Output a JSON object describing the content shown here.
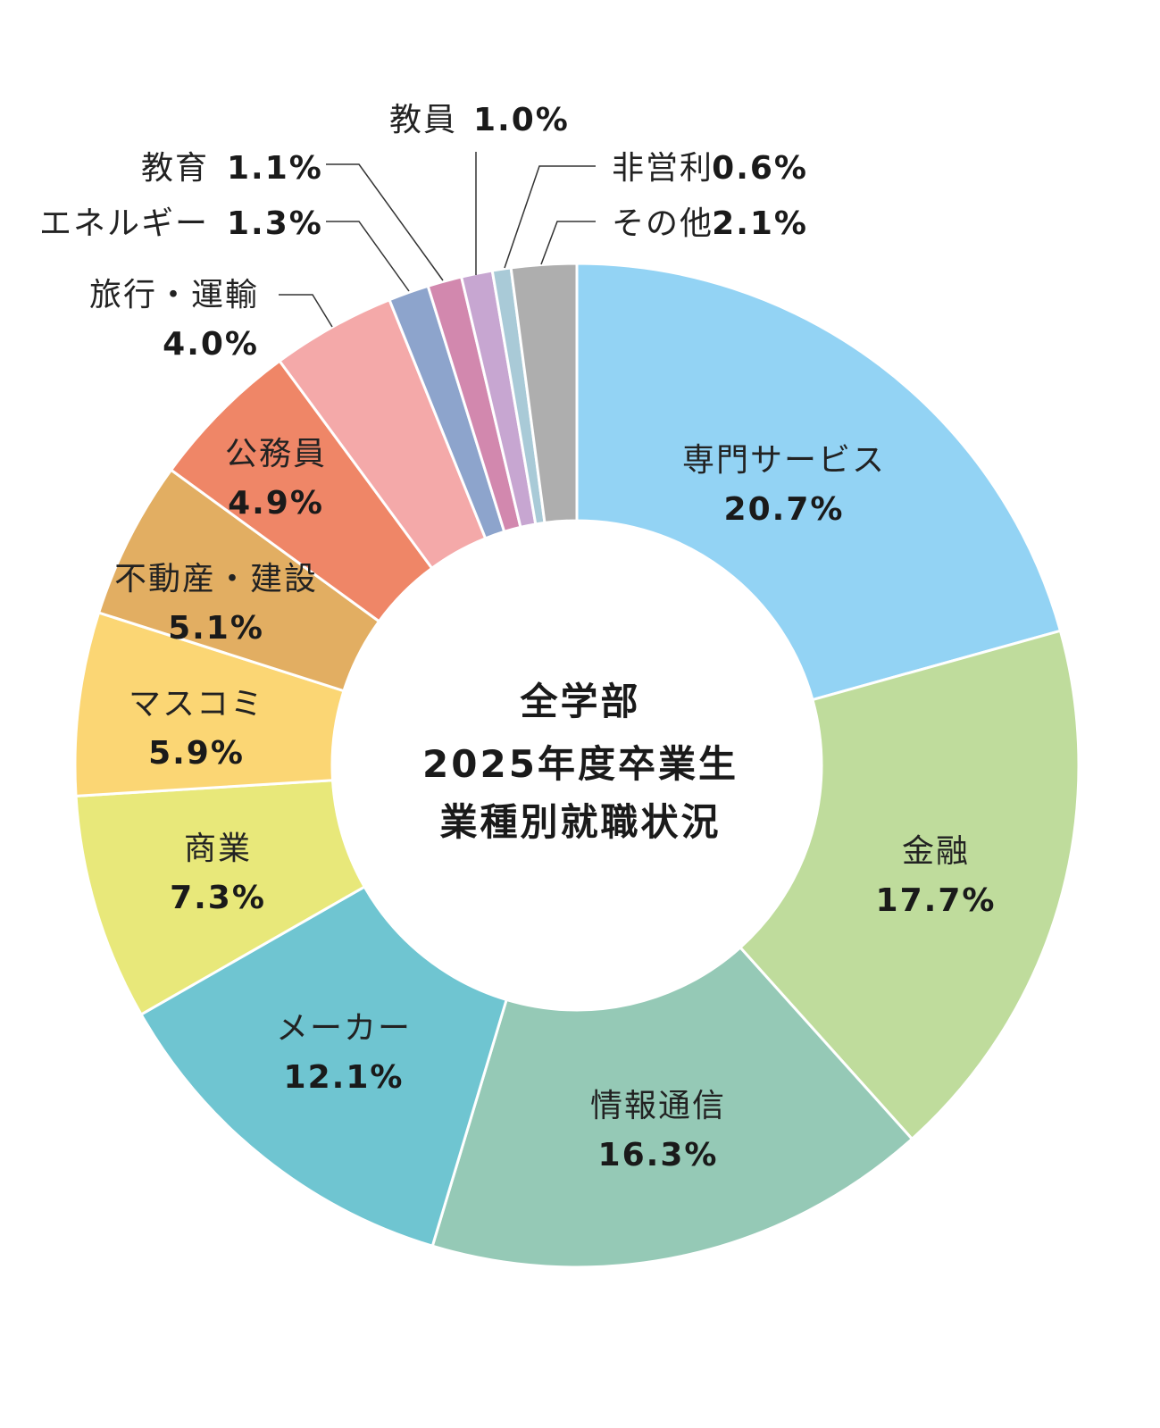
{
  "chart_data": {
    "type": "pie",
    "donut": true,
    "center_title": [
      "全学部",
      "2025年度卒業生",
      "業種別就職状況"
    ],
    "unit": "%",
    "categories": [
      "専門サービス",
      "金融",
      "情報通信",
      "メーカー",
      "商業",
      "マスコミ",
      "不動産・建設",
      "公務員",
      "旅行・運輸",
      "エネルギー",
      "教育",
      "教員",
      "非営利",
      "その他"
    ],
    "values": [
      20.7,
      17.7,
      16.3,
      12.1,
      7.3,
      5.9,
      5.1,
      4.9,
      4.0,
      1.3,
      1.1,
      1.0,
      0.6,
      2.1
    ],
    "value_labels": [
      "20.7%",
      "17.7%",
      "16.3%",
      "12.1%",
      "7.3%",
      "5.9%",
      "5.1%",
      "4.9%",
      "4.0%",
      "1.3%",
      "1.1%",
      "1.0%",
      "0.6%",
      "2.1%"
    ],
    "colors": [
      "#93d3f4",
      "#bfdc9c",
      "#95c9b6",
      "#6fc5d1",
      "#e8e87a",
      "#fbd674",
      "#e2ae62",
      "#ef8667",
      "#f4a9a9",
      "#8da4cc",
      "#d288ae",
      "#c7a6d1",
      "#a9cad7",
      "#aeaeae"
    ],
    "start_angle": "12 o'clock",
    "direction": "clockwise",
    "legend": "none"
  }
}
